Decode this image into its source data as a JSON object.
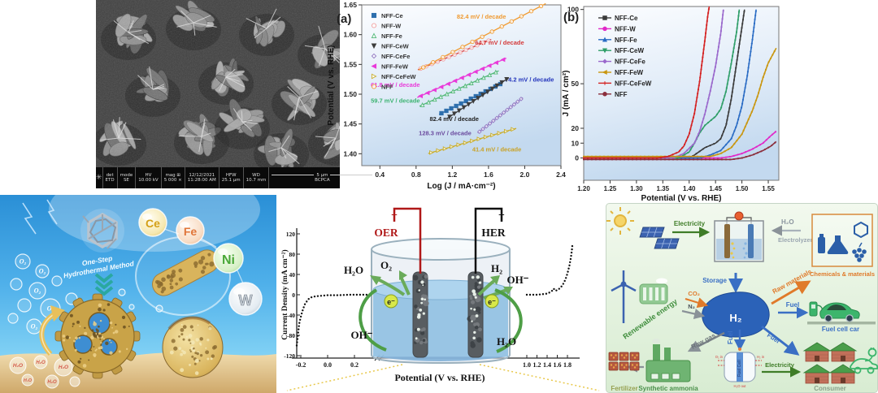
{
  "sem": {
    "logo_glyph": "✳",
    "meta_cells": [
      {
        "top": "det",
        "bottom": "ETD"
      },
      {
        "top": "mode",
        "bottom": "SE"
      },
      {
        "top": "HV",
        "bottom": "10.00 kV"
      },
      {
        "top": "mag ⊞",
        "bottom": "5 000 ×"
      },
      {
        "top": "12/12/2021",
        "bottom": "11:28:00 AM"
      },
      {
        "top": "HFW",
        "bottom": "25.1 μm"
      },
      {
        "top": "WD",
        "bottom": "10.7 mm"
      }
    ],
    "scale_label": "5 μm",
    "facility": "BCPCA"
  },
  "chart_data": [
    {
      "type": "line",
      "panel_tag": "(a)",
      "xlabel": "Log (J / mA·cm⁻²)",
      "ylabel": "Potential (V vs. RHE)",
      "xlim": [
        0.2,
        2.4
      ],
      "ylim": [
        1.38,
        1.65
      ],
      "xticks": [
        0.4,
        0.8,
        1.2,
        1.6,
        2.0,
        2.4
      ],
      "yticks": [
        1.4,
        1.45,
        1.5,
        1.55,
        1.6,
        1.65
      ],
      "legend_position": "top-left",
      "series": [
        {
          "name": "NFF-Ce",
          "color": "#2e6fad",
          "marker": "square",
          "open": false,
          "seg": [
            1.08,
            1.468,
            1.73,
            1.517
          ],
          "label": "74.2  mV / decade",
          "label_color": "#2233bb",
          "label_pos": [
            1.78,
            1.521
          ]
        },
        {
          "name": "NFF-W",
          "color": "#d43b3b",
          "marker": "circle",
          "open": true,
          "marker_color": "#f0a0a0",
          "seg": [
            0.85,
            1.543,
            1.6,
            1.59
          ],
          "label": "64.7 mV / decade",
          "label_color": "#d43b3b",
          "label_pos": [
            1.45,
            1.583
          ]
        },
        {
          "name": "NFF-Fe",
          "color": "#52b878",
          "marker": "tri-up",
          "open": true,
          "seg": [
            0.87,
            1.482,
            1.68,
            1.537
          ],
          "label": "59.7  mV / decade",
          "label_color": "#3cb371",
          "label_pos": [
            0.3,
            1.486
          ]
        },
        {
          "name": "NFF-CeW",
          "color": "#3c3c3c",
          "marker": "tri-down",
          "open": false,
          "seg": [
            1.17,
            1.462,
            1.8,
            1.525
          ],
          "label": "82.4  mV / decade",
          "label_color": "#222222",
          "label_pos": [
            0.95,
            1.455
          ]
        },
        {
          "name": "NFF-CeFe",
          "color": "#9279c2",
          "marker": "diamond",
          "open": true,
          "seg": [
            1.5,
            1.437,
            1.96,
            1.492
          ],
          "label": "128.3  mV / decade",
          "label_color": "#6a4a9e",
          "label_pos": [
            0.83,
            1.431
          ]
        },
        {
          "name": "NFF-FeW",
          "color": "#e93ad9",
          "marker": "tri-left",
          "open": false,
          "seg": [
            0.85,
            1.497,
            1.76,
            1.558
          ],
          "label": "61.8  mV / decade",
          "label_color": "#e93ad9",
          "label_pos": [
            0.3,
            1.512
          ]
        },
        {
          "name": "NFF-CeFeW",
          "color": "#c9ad2a",
          "marker": "tri-right",
          "open": true,
          "seg": [
            0.97,
            1.402,
            1.87,
            1.441
          ],
          "label": "41.4  mV / decade",
          "label_color": "#c9a227",
          "label_pos": [
            1.42,
            1.404
          ]
        },
        {
          "name": "NFF",
          "color": "#f09a30",
          "marker": "circle",
          "open": true,
          "seg": [
            0.88,
            1.545,
            2.18,
            1.648
          ],
          "label": "82.4 mV / decade",
          "label_color": "#f09a30",
          "label_pos": [
            1.25,
            1.627
          ]
        }
      ]
    },
    {
      "type": "line",
      "panel_tag": "(b)",
      "xlabel": "Potential (V vs. RHE)",
      "ylabel": "J  (mA / cm²)",
      "xlim": [
        1.2,
        1.57
      ],
      "ylim": [
        -15,
        102
      ],
      "xticks": [
        1.2,
        1.25,
        1.3,
        1.35,
        1.4,
        1.45,
        1.5,
        1.55
      ],
      "yticks": [
        0,
        10,
        20,
        50,
        100
      ],
      "legend_position": "upper-left",
      "series": [
        {
          "name": "NFF-Ce",
          "color": "#3a3a3a",
          "marker": "square",
          "points": [
            [
              1.2,
              0
            ],
            [
              1.3,
              0
            ],
            [
              1.4,
              0
            ],
            [
              1.41,
              2
            ],
            [
              1.43,
              7
            ],
            [
              1.45,
              10
            ],
            [
              1.46,
              13
            ],
            [
              1.47,
              22
            ],
            [
              1.48,
              40
            ],
            [
              1.49,
              64
            ],
            [
              1.5,
              88
            ],
            [
              1.505,
              100
            ]
          ]
        },
        {
          "name": "NFF-W",
          "color": "#e128c8",
          "marker": "circle",
          "points": [
            [
              1.2,
              0
            ],
            [
              1.35,
              0
            ],
            [
              1.46,
              0
            ],
            [
              1.48,
              1
            ],
            [
              1.5,
              3
            ],
            [
              1.52,
              6
            ],
            [
              1.54,
              10
            ],
            [
              1.555,
              15
            ],
            [
              1.565,
              18
            ]
          ]
        },
        {
          "name": "NFF-Fe",
          "color": "#2b6cc4",
          "marker": "tri-up",
          "points": [
            [
              1.2,
              0
            ],
            [
              1.35,
              0
            ],
            [
              1.42,
              0
            ],
            [
              1.44,
              2
            ],
            [
              1.46,
              5
            ],
            [
              1.48,
              13
            ],
            [
              1.49,
              22
            ],
            [
              1.5,
              35
            ],
            [
              1.51,
              55
            ],
            [
              1.52,
              80
            ],
            [
              1.527,
              100
            ]
          ]
        },
        {
          "name": "NFF-CeW",
          "color": "#2f9e68",
          "marker": "tri-down",
          "points": [
            [
              1.2,
              0
            ],
            [
              1.32,
              0
            ],
            [
              1.38,
              0
            ],
            [
              1.4,
              4
            ],
            [
              1.41,
              10
            ],
            [
              1.42,
              17
            ],
            [
              1.43,
              22
            ],
            [
              1.44,
              25
            ],
            [
              1.45,
              28
            ],
            [
              1.46,
              33
            ],
            [
              1.47,
              45
            ],
            [
              1.48,
              64
            ],
            [
              1.49,
              85
            ],
            [
              1.495,
              100
            ]
          ]
        },
        {
          "name": "NFF-CeFe",
          "color": "#9a68cc",
          "marker": "diamond",
          "points": [
            [
              1.2,
              0
            ],
            [
              1.3,
              0
            ],
            [
              1.37,
              0
            ],
            [
              1.39,
              3
            ],
            [
              1.41,
              10
            ],
            [
              1.42,
              18
            ],
            [
              1.43,
              30
            ],
            [
              1.44,
              45
            ],
            [
              1.45,
              62
            ],
            [
              1.46,
              84
            ],
            [
              1.465,
              100
            ]
          ]
        },
        {
          "name": "NFF-FeW",
          "color": "#c9960f",
          "marker": "tri-left",
          "points": [
            [
              1.2,
              1
            ],
            [
              1.35,
              1
            ],
            [
              1.44,
              1
            ],
            [
              1.46,
              3
            ],
            [
              1.48,
              7
            ],
            [
              1.5,
              16
            ],
            [
              1.52,
              32
            ],
            [
              1.53,
              42
            ],
            [
              1.54,
              54
            ],
            [
              1.55,
              64
            ],
            [
              1.565,
              74
            ]
          ]
        },
        {
          "name": "NFF-CeFeW",
          "color": "#d42222",
          "marker": "plus",
          "points": [
            [
              1.2,
              0
            ],
            [
              1.28,
              0
            ],
            [
              1.34,
              0
            ],
            [
              1.36,
              1
            ],
            [
              1.38,
              4
            ],
            [
              1.39,
              8
            ],
            [
              1.4,
              16
            ],
            [
              1.41,
              30
            ],
            [
              1.42,
              52
            ],
            [
              1.43,
              80
            ],
            [
              1.435,
              95
            ],
            [
              1.438,
              102
            ]
          ]
        },
        {
          "name": "NFF",
          "color": "#8b2e3c",
          "marker": "circle",
          "points": [
            [
              1.2,
              -1
            ],
            [
              1.35,
              -1
            ],
            [
              1.48,
              -1
            ],
            [
              1.5,
              0
            ],
            [
              1.52,
              2
            ],
            [
              1.54,
              5
            ],
            [
              1.555,
              8
            ],
            [
              1.565,
              11
            ]
          ]
        }
      ]
    },
    {
      "type": "line",
      "xlabel": "Potential (V vs. RHE)",
      "ylabel": "Current Density (mA cm⁻²)",
      "yticks": [
        120,
        80,
        40,
        0,
        -40,
        -80,
        -120
      ],
      "xticks_left": [
        -0.2,
        0.0,
        0.2
      ],
      "xticks_right": [
        1.0,
        1.2,
        1.4,
        1.6,
        1.8
      ],
      "axis_break": "//",
      "series": [
        {
          "name": "HER branch",
          "color": "#111111",
          "segment": "left",
          "points": [
            [
              -0.23,
              -100
            ],
            [
              -0.225,
              -88
            ],
            [
              -0.22,
              -76
            ],
            [
              -0.215,
              -64
            ],
            [
              -0.21,
              -54
            ],
            [
              -0.2,
              -44
            ],
            [
              -0.19,
              -34
            ],
            [
              -0.18,
              -26
            ],
            [
              -0.17,
              -19
            ],
            [
              -0.155,
              -13
            ],
            [
              -0.14,
              -8
            ],
            [
              -0.12,
              -5
            ],
            [
              -0.09,
              -3
            ],
            [
              -0.05,
              -2
            ],
            [
              0.0,
              -1
            ],
            [
              0.08,
              -1
            ],
            [
              0.16,
              0
            ],
            [
              0.25,
              0
            ],
            [
              0.33,
              0
            ]
          ]
        },
        {
          "name": "OER branch",
          "color": "#111111",
          "segment": "right",
          "points": [
            [
              1.0,
              0
            ],
            [
              1.1,
              0
            ],
            [
              1.2,
              0
            ],
            [
              1.3,
              1
            ],
            [
              1.38,
              2
            ],
            [
              1.44,
              4
            ],
            [
              1.5,
              8
            ],
            [
              1.53,
              12
            ],
            [
              1.56,
              8
            ],
            [
              1.6,
              9
            ],
            [
              1.64,
              12
            ],
            [
              1.68,
              16
            ],
            [
              1.72,
              22
            ],
            [
              1.76,
              30
            ],
            [
              1.8,
              42
            ],
            [
              1.84,
              58
            ],
            [
              1.87,
              75
            ],
            [
              1.89,
              90
            ],
            [
              1.9,
              102
            ]
          ]
        }
      ]
    }
  ],
  "electrolysis": {
    "plus": "+",
    "oer": "OER",
    "minus": "−",
    "her": "HER",
    "h2o": "H₂O",
    "o2": "O₂",
    "h2": "H₂",
    "oh": "OH⁻",
    "electron": "e⁻"
  },
  "schematic": {
    "method_line1": "One-Step",
    "method_line2": "Hydrothermal Method",
    "o2": "O₂",
    "h2o": "H₂O",
    "elements": [
      {
        "symbol": "Ce",
        "color": "#d4a017"
      },
      {
        "symbol": "Fe",
        "color": "#e0763a"
      },
      {
        "symbol": "Ni",
        "color": "#4aa838"
      },
      {
        "symbol": "W",
        "color": "#c8d0d8"
      }
    ]
  },
  "economy": {
    "electricity": "Electricity",
    "h2o": "H₂O",
    "electrolyzer": "Electrolyzer",
    "chemicals": "Chemicals & materials",
    "storage": "Storage",
    "h2": "H₂",
    "co2": "CO₂",
    "n2": "N₂",
    "raw_materials": "Raw materials",
    "fuel": "Fuel",
    "fuel_cell_car": "Fuel cell car",
    "renewable": "Renewable energy",
    "raw_gas": "Raw gas",
    "synthetic_ammonia": "Synthetic ammonia",
    "fertilizer": "Fertilizer",
    "fuel_cell": "Fuel Cell",
    "o2_in": "O₂ in",
    "h2_in": "H₂ in",
    "h2o_out": "H₂O out",
    "electricity2": "Electricity",
    "consumer": "Consumer"
  }
}
